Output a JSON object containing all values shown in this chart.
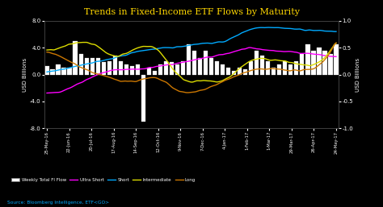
{
  "title": "Trends in Fixed-Income ETF Flows by Maturity",
  "title_color": "#FFD700",
  "bg_color": "#000000",
  "plot_bg_color": "#000000",
  "ylabel_left": "USD Billions",
  "ylabel_right": "USD Billions",
  "ylim_left": [
    -8.0,
    8.0
  ],
  "ylim_right": [
    -1.0,
    1.0
  ],
  "source_text": "Source: Bloomberg Intelligence, ETF<GO>",
  "x_labels": [
    "25-May-16",
    "22-Jun-16",
    "20-Jul-16",
    "17-Aug-16",
    "14-Sep-16",
    "12-Oct-16",
    "9-Nov-16",
    "7-Dec-16",
    "4-Jan-17",
    "1-Feb-17",
    "1-Mar-17",
    "29-Mar-17",
    "26-Apr-17",
    "24-May-17"
  ],
  "x_label_indices": [
    0,
    4,
    8,
    12,
    16,
    20,
    24,
    28,
    32,
    36,
    40,
    44,
    48,
    52
  ],
  "bar_values": [
    1.2,
    0.8,
    1.5,
    1.0,
    1.0,
    5.0,
    3.0,
    2.5,
    2.5,
    2.5,
    1.8,
    2.0,
    2.8,
    2.0,
    1.5,
    1.2,
    1.5,
    -7.0,
    1.0,
    0.5,
    1.5,
    2.0,
    1.8,
    1.5,
    2.0,
    4.5,
    3.5,
    2.5,
    3.5,
    2.5,
    2.0,
    1.5,
    1.0,
    0.5,
    1.0,
    0.8,
    2.0,
    3.5,
    2.8,
    2.0,
    1.0,
    1.5,
    2.0,
    1.5,
    2.0,
    3.0,
    4.5,
    3.5,
    4.0,
    3.5,
    3.0,
    4.5
  ],
  "bar_color": "#ffffff",
  "bar_edge_color": "#cccccc",
  "ultra_short_color": "#ff00ff",
  "short_color": "#00aaff",
  "intermediate_color": "#dddd00",
  "long_color": "#cc7700",
  "legend_items": [
    "Weekly Total FI Flow",
    "Ultra Short",
    "Short",
    "Intermediate",
    "Long"
  ]
}
